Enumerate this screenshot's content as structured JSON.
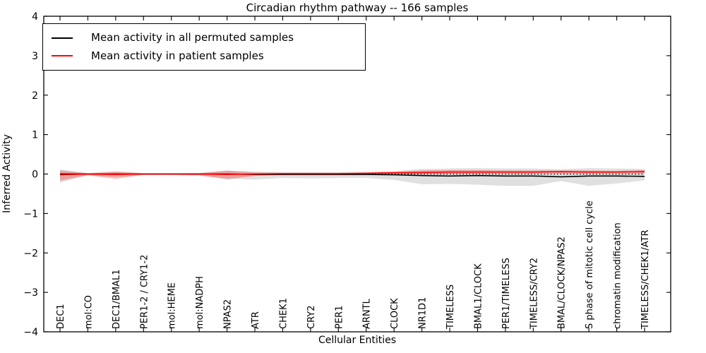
{
  "chart_data": {
    "type": "line",
    "title": "Circadian rhythm pathway -- 166 samples",
    "xlabel": "Cellular Entities",
    "ylabel": "Inferred Activity",
    "ylim": [
      -4,
      4
    ],
    "y_ticks": [
      4,
      3,
      2,
      1,
      0,
      -1,
      -2,
      -3,
      -4
    ],
    "y_tick_labels": [
      "4",
      "3",
      "2",
      "1",
      "0",
      "−1",
      "−2",
      "−3",
      "−4"
    ],
    "grid": false,
    "legend_position": "upper left",
    "zero_reference_line": {
      "value": 0,
      "style": "dotted",
      "color": "#000000"
    },
    "categories": [
      "DEC1",
      "mol:CO",
      "DEC1/BMAL1",
      "PER1-2 / CRY1-2",
      "mol:HEME",
      "mol:NADPH",
      "NPAS2",
      "ATR",
      "CHEK1",
      "CRY2",
      "PER1",
      "ARNTL",
      "CLOCK",
      "NR1D1",
      "TIMELESS",
      "BMAL1/CLOCK",
      "PER1/TIMELESS",
      "TIMELESS/CRY2",
      "BMAL/CLOCK/NPAS2",
      "S phase of mitotic cell cycle",
      "chromatin modification",
      "TIMELESS/CHEK1/ATR"
    ],
    "series": [
      {
        "name": "Mean activity in all permuted samples",
        "color": "#000000",
        "band_color": "rgba(0,0,0,0.12)",
        "mean": [
          0.0,
          0.0,
          0.0,
          0.0,
          0.0,
          0.0,
          0.0,
          -0.01,
          -0.01,
          -0.01,
          -0.01,
          -0.01,
          -0.02,
          -0.04,
          -0.05,
          -0.04,
          -0.05,
          -0.05,
          -0.07,
          -0.05,
          -0.05,
          -0.06
        ],
        "upper": [
          0.12,
          0.02,
          0.05,
          0.02,
          0.02,
          0.03,
          0.08,
          0.06,
          0.05,
          0.05,
          0.05,
          0.05,
          0.07,
          0.13,
          0.14,
          0.15,
          0.14,
          0.14,
          0.12,
          0.15,
          0.14,
          0.13
        ],
        "lower": [
          -0.22,
          -0.03,
          -0.07,
          -0.03,
          -0.03,
          -0.05,
          -0.12,
          -0.14,
          -0.1,
          -0.11,
          -0.1,
          -0.1,
          -0.15,
          -0.26,
          -0.25,
          -0.27,
          -0.3,
          -0.3,
          -0.18,
          -0.3,
          -0.24,
          -0.16
        ]
      },
      {
        "name": "Mean activity in patient samples",
        "color": "#ff0000",
        "band_color": "rgba(255,0,0,0.28)",
        "mean": [
          -0.02,
          0.0,
          -0.01,
          0.0,
          0.0,
          0.0,
          -0.01,
          0.0,
          0.01,
          0.01,
          0.01,
          0.02,
          0.03,
          0.04,
          0.05,
          0.05,
          0.05,
          0.05,
          0.06,
          0.05,
          0.05,
          0.06
        ],
        "upper": [
          0.09,
          0.02,
          0.07,
          0.02,
          0.02,
          0.02,
          0.09,
          0.04,
          0.03,
          0.03,
          0.03,
          0.04,
          0.06,
          0.09,
          0.1,
          0.1,
          0.09,
          0.09,
          0.09,
          0.09,
          0.08,
          0.1
        ],
        "lower": [
          -0.17,
          -0.03,
          -0.12,
          -0.02,
          -0.02,
          -0.03,
          -0.13,
          -0.05,
          -0.02,
          -0.02,
          -0.02,
          -0.01,
          0.0,
          0.0,
          0.01,
          0.01,
          0.02,
          0.02,
          0.02,
          0.02,
          0.02,
          0.02
        ]
      }
    ]
  }
}
